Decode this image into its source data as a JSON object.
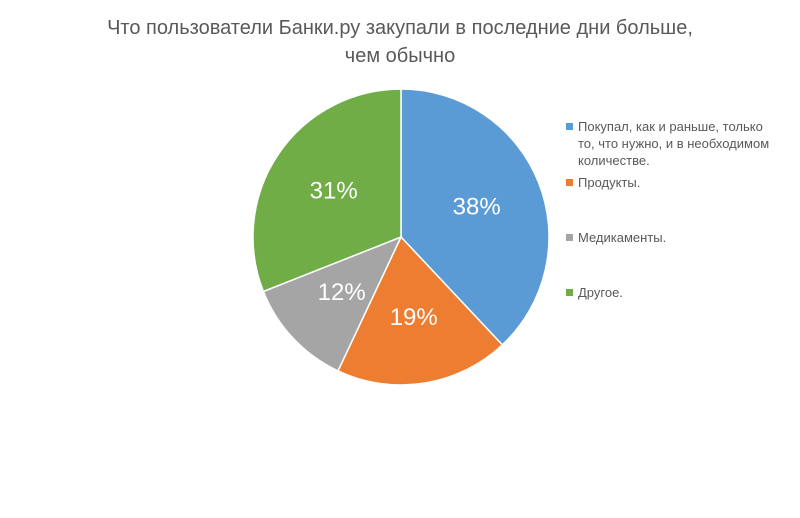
{
  "chart_data": {
    "type": "pie",
    "title_lines": [
      "Что пользователи Банки.ру закупали в последние дни больше,",
      "чем обычно"
    ],
    "slices": [
      {
        "label": "Покупал, как и раньше, только то, что нужно, и в необходимом количестве.",
        "value": 38,
        "display": "38%",
        "color": "#5B9BD5"
      },
      {
        "label": "Продукты.",
        "value": 19,
        "display": "19%",
        "color": "#ED7D31"
      },
      {
        "label": "Медикаменты.",
        "value": 12,
        "display": "12%",
        "color": "#A5A5A5"
      },
      {
        "label": "Другое.",
        "value": 31,
        "display": "31%",
        "color": "#70AD47"
      }
    ],
    "legend_position": "right",
    "start": "top, clockwise"
  }
}
